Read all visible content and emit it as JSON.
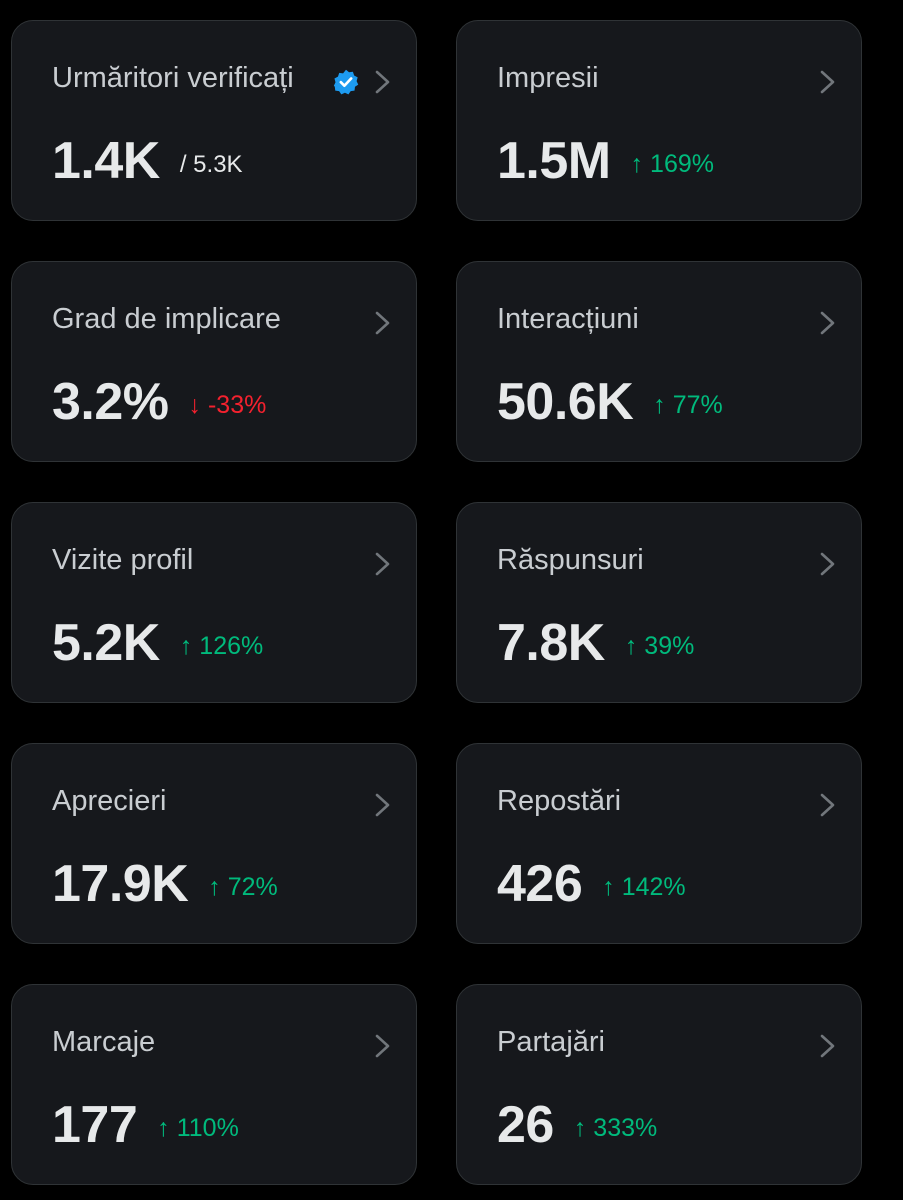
{
  "colors": {
    "background": "#000000",
    "card_background": "#16181c",
    "card_border": "#2f3336",
    "positive": "#00ba7c",
    "negative": "#f4212e",
    "verified": "#1d9bf0"
  },
  "cards": [
    {
      "title": "Urmăritori verificați",
      "value": "1.4K",
      "total": "/ 5.3K",
      "icon": "verified-badge-icon"
    },
    {
      "title": "Impresii",
      "value": "1.5M",
      "change": "↑ 169%",
      "trend": "up"
    },
    {
      "title": "Grad de implicare",
      "value": "3.2%",
      "change": "↓ -33%",
      "trend": "down"
    },
    {
      "title": "Interacțiuni",
      "value": "50.6K",
      "change": "↑ 77%",
      "trend": "up"
    },
    {
      "title": "Vizite profil",
      "value": "5.2K",
      "change": "↑ 126%",
      "trend": "up"
    },
    {
      "title": "Răspunsuri",
      "value": "7.8K",
      "change": "↑ 39%",
      "trend": "up"
    },
    {
      "title": "Aprecieri",
      "value": "17.9K",
      "change": "↑ 72%",
      "trend": "up"
    },
    {
      "title": "Repostări",
      "value": "426",
      "change": "↑ 142%",
      "trend": "up"
    },
    {
      "title": "Marcaje",
      "value": "177",
      "change": "↑ 110%",
      "trend": "up"
    },
    {
      "title": "Partajări",
      "value": "26",
      "change": "↑ 333%",
      "trend": "up"
    }
  ]
}
